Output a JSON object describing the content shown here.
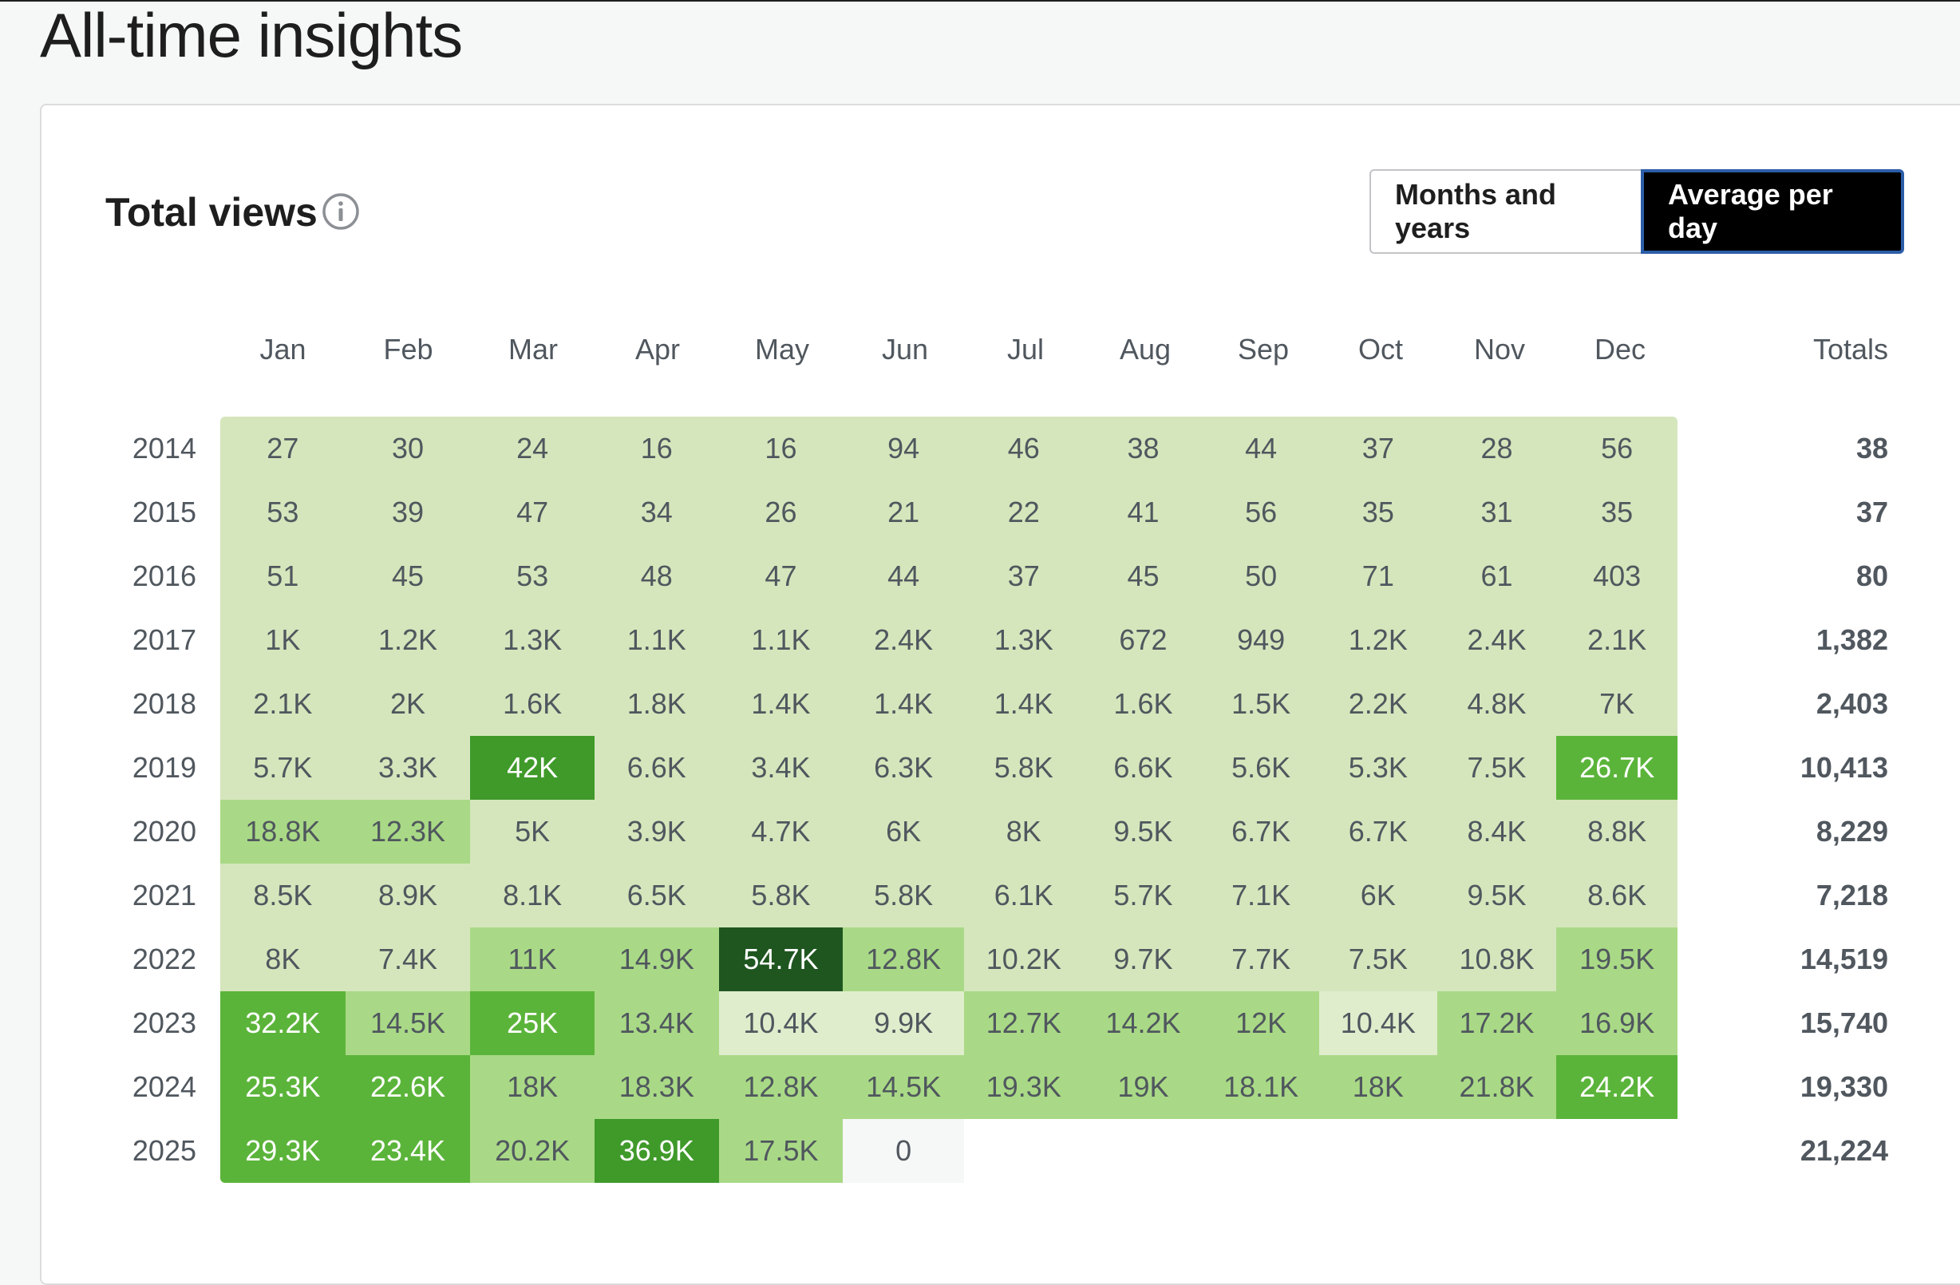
{
  "page": {
    "title": "All-time insights"
  },
  "card": {
    "title": "Total views"
  },
  "toggle": {
    "months_label": "Months and years",
    "average_label": "Average per day"
  },
  "icons": {
    "info": "info-icon"
  },
  "table": {
    "months": [
      "Jan",
      "Feb",
      "Mar",
      "Apr",
      "May",
      "Jun",
      "Jul",
      "Aug",
      "Sep",
      "Oct",
      "Nov",
      "Dec"
    ],
    "totals_label": "Totals",
    "rows": [
      {
        "year": "2014",
        "values": [
          "27",
          "30",
          "24",
          "16",
          "16",
          "94",
          "46",
          "38",
          "44",
          "37",
          "28",
          "56"
        ],
        "levels": [
          0,
          0,
          0,
          0,
          0,
          0,
          0,
          0,
          0,
          0,
          0,
          0
        ],
        "total": "38"
      },
      {
        "year": "2015",
        "values": [
          "53",
          "39",
          "47",
          "34",
          "26",
          "21",
          "22",
          "41",
          "56",
          "35",
          "31",
          "35"
        ],
        "levels": [
          0,
          0,
          0,
          0,
          0,
          0,
          0,
          0,
          0,
          0,
          0,
          0
        ],
        "total": "37"
      },
      {
        "year": "2016",
        "values": [
          "51",
          "45",
          "53",
          "48",
          "47",
          "44",
          "37",
          "45",
          "50",
          "71",
          "61",
          "403"
        ],
        "levels": [
          0,
          0,
          0,
          0,
          0,
          0,
          0,
          0,
          0,
          0,
          0,
          0
        ],
        "total": "80"
      },
      {
        "year": "2017",
        "values": [
          "1K",
          "1.2K",
          "1.3K",
          "1.1K",
          "1.1K",
          "2.4K",
          "1.3K",
          "672",
          "949",
          "1.2K",
          "2.4K",
          "2.1K"
        ],
        "levels": [
          0,
          0,
          0,
          0,
          0,
          0,
          0,
          0,
          0,
          0,
          0,
          0
        ],
        "total": "1,382"
      },
      {
        "year": "2018",
        "values": [
          "2.1K",
          "2K",
          "1.6K",
          "1.8K",
          "1.4K",
          "1.4K",
          "1.4K",
          "1.6K",
          "1.5K",
          "2.2K",
          "4.8K",
          "7K"
        ],
        "levels": [
          0,
          0,
          0,
          0,
          0,
          0,
          0,
          0,
          0,
          0,
          0,
          0
        ],
        "total": "2,403"
      },
      {
        "year": "2019",
        "values": [
          "5.7K",
          "3.3K",
          "42K",
          "6.6K",
          "3.4K",
          "6.3K",
          "5.8K",
          "6.6K",
          "5.6K",
          "5.3K",
          "7.5K",
          "26.7K"
        ],
        "levels": [
          0,
          0,
          3,
          0,
          0,
          0,
          0,
          0,
          0,
          0,
          0,
          2
        ],
        "total": "10,413"
      },
      {
        "year": "2020",
        "values": [
          "18.8K",
          "12.3K",
          "5K",
          "3.9K",
          "4.7K",
          "6K",
          "8K",
          "9.5K",
          "6.7K",
          "6.7K",
          "8.4K",
          "8.8K"
        ],
        "levels": [
          1,
          1,
          0,
          0,
          0,
          0,
          0,
          0,
          0,
          0,
          0,
          0
        ],
        "total": "8,229"
      },
      {
        "year": "2021",
        "values": [
          "8.5K",
          "8.9K",
          "8.1K",
          "6.5K",
          "5.8K",
          "5.8K",
          "6.1K",
          "5.7K",
          "7.1K",
          "6K",
          "9.5K",
          "8.6K"
        ],
        "levels": [
          0,
          0,
          0,
          0,
          0,
          0,
          0,
          0,
          0,
          0,
          0,
          0
        ],
        "total": "7,218"
      },
      {
        "year": "2022",
        "values": [
          "8K",
          "7.4K",
          "11K",
          "14.9K",
          "54.7K",
          "12.8K",
          "10.2K",
          "9.7K",
          "7.7K",
          "7.5K",
          "10.8K",
          "19.5K"
        ],
        "levels": [
          0,
          0,
          1,
          1,
          4,
          1,
          0,
          0,
          0,
          0,
          0,
          1
        ],
        "total": "14,519"
      },
      {
        "year": "2023",
        "values": [
          "32.2K",
          "14.5K",
          "25K",
          "13.4K",
          "10.4K",
          "9.9K",
          "12.7K",
          "14.2K",
          "12K",
          "10.4K",
          "17.2K",
          "16.9K"
        ],
        "levels": [
          2,
          1,
          2,
          1,
          5,
          5,
          1,
          1,
          1,
          5,
          1,
          1
        ],
        "total": "15,740"
      },
      {
        "year": "2024",
        "values": [
          "25.3K",
          "22.6K",
          "18K",
          "18.3K",
          "12.8K",
          "14.5K",
          "19.3K",
          "19K",
          "18.1K",
          "18K",
          "21.8K",
          "24.2K"
        ],
        "levels": [
          2,
          2,
          1,
          1,
          1,
          1,
          1,
          1,
          1,
          1,
          1,
          2
        ],
        "total": "19,330"
      },
      {
        "year": "2025",
        "values": [
          "29.3K",
          "23.4K",
          "20.2K",
          "36.9K",
          "17.5K",
          "0",
          "",
          "",
          "",
          "",
          "",
          ""
        ],
        "levels": [
          2,
          2,
          1,
          3,
          1,
          6,
          7,
          7,
          7,
          7,
          7,
          7
        ],
        "total": "21,224"
      }
    ]
  },
  "colors": {
    "level_0": "#d5e6bc",
    "level_1": "#a9d986",
    "level_2": "#5bb43a",
    "level_3": "#3f9a2a",
    "level_4": "#1f5620",
    "level_5": "#e0edcc",
    "level_6": "#f6f7f7",
    "level_7": "#ffffff",
    "light_text": "#50575e",
    "dark_text": "#ffffff"
  }
}
